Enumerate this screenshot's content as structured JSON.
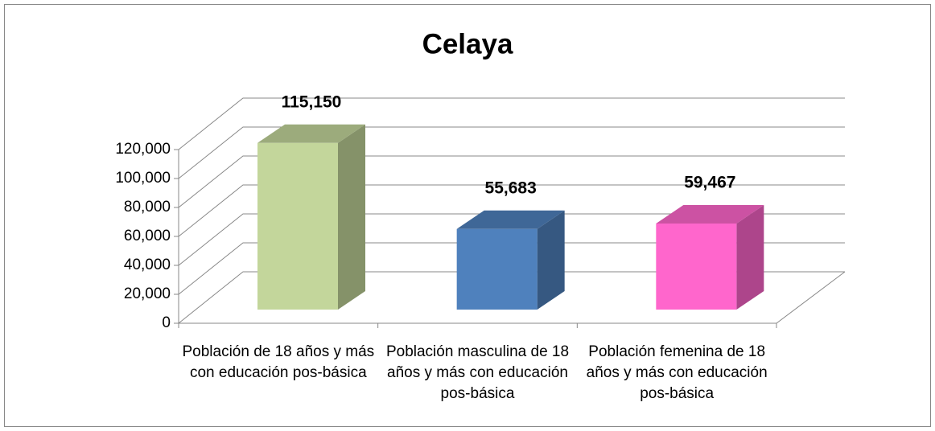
{
  "chart_data": {
    "type": "bar3d",
    "title": "Celaya",
    "categories": [
      "Población de 18 años y más con educación pos-básica",
      "Población masculina de 18 años y más con educación pos-básica",
      "Población femenina de 18 años y más con educación pos-básica"
    ],
    "values": [
      115150,
      55683,
      59467
    ],
    "value_labels": [
      "115,150",
      "55,683",
      "59,467"
    ],
    "colors": [
      "#C3D69B",
      "#4F81BD",
      "#FF66CC"
    ],
    "ylim": [
      0,
      120000
    ],
    "yticks": [
      0,
      {
        "value": 20000,
        "label": "20,000"
      },
      {
        "value": 40000,
        "label": "40,000"
      },
      {
        "value": 60000,
        "label": "60,000"
      },
      {
        "value": 80000,
        "label": "80,000"
      },
      {
        "value": 100000,
        "label": "100,000"
      },
      {
        "value": 120000,
        "label": "120,000"
      }
    ],
    "grid": true
  }
}
